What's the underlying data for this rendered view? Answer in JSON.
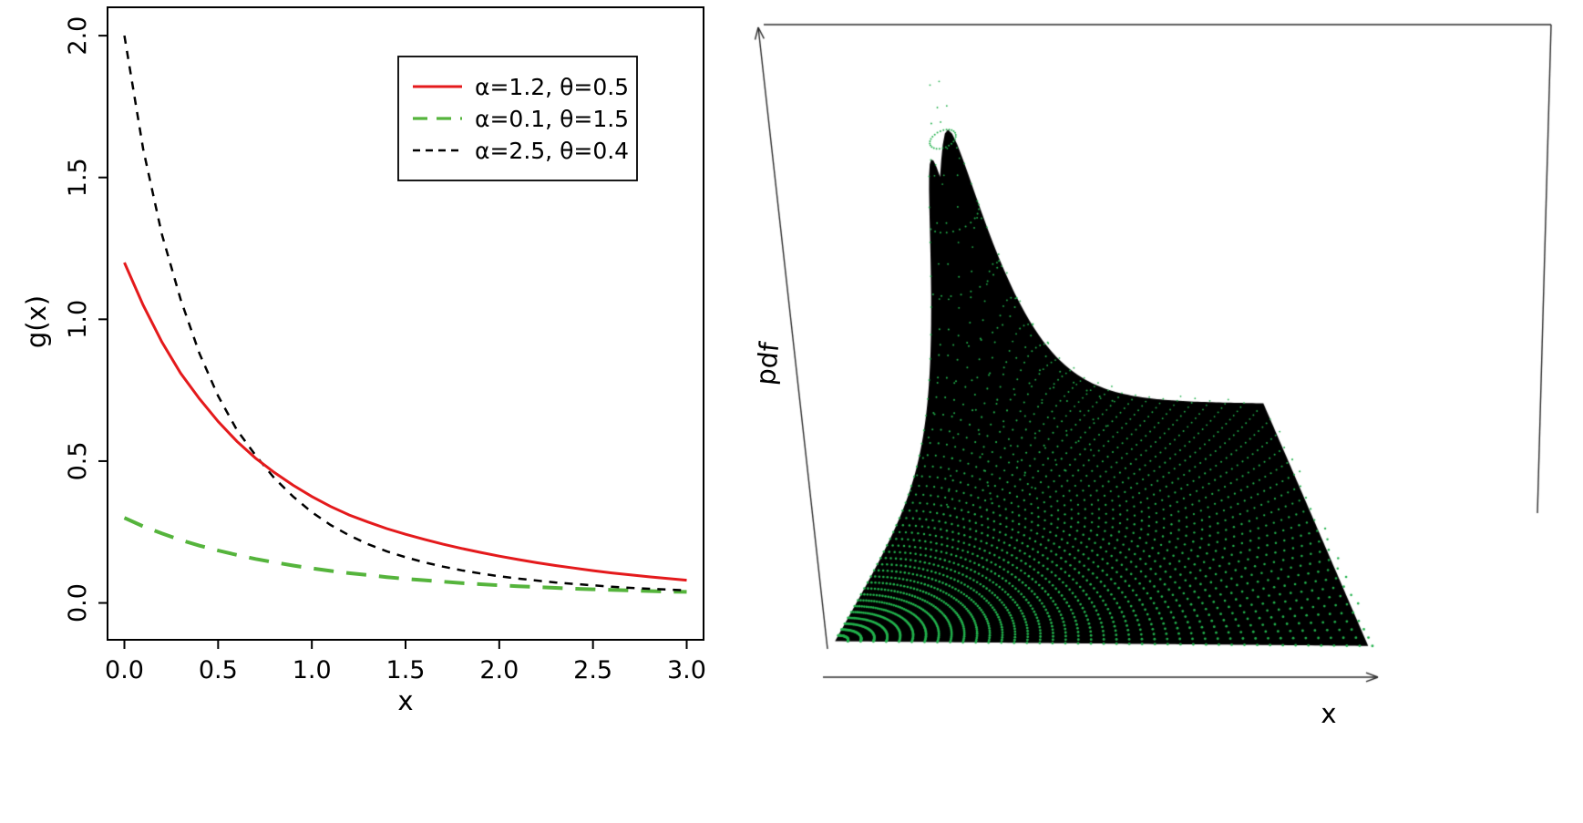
{
  "page": {
    "background": "#ffffff"
  },
  "chart_data": [
    {
      "id": "gx-line-plot",
      "type": "line",
      "title": "",
      "xlabel": "x",
      "ylabel": "g(x)",
      "xlim": [
        -0.09,
        3.09
      ],
      "ylim": [
        -0.13,
        2.1
      ],
      "xticks": [
        0.0,
        0.5,
        1.0,
        1.5,
        2.0,
        2.5,
        3.0
      ],
      "yticks": [
        0.0,
        0.5,
        1.0,
        1.5,
        2.0
      ],
      "grid": false,
      "box": true,
      "x": [
        0.0,
        0.1,
        0.2,
        0.3,
        0.4,
        0.5,
        0.6,
        0.7,
        0.8,
        0.9,
        1.0,
        1.1,
        1.2,
        1.3,
        1.4,
        1.5,
        1.6,
        1.7,
        1.8,
        1.9,
        2.0,
        2.1,
        2.2,
        2.3,
        2.4,
        2.5,
        2.6,
        2.7,
        2.8,
        2.9,
        3.0
      ],
      "series": [
        {
          "name": "α=1.2, θ=0.5",
          "color": "#e41a1c",
          "dash": "solid",
          "width": 3,
          "values": [
            1.2,
            1.05,
            0.92,
            0.81,
            0.72,
            0.64,
            0.57,
            0.51,
            0.46,
            0.415,
            0.375,
            0.34,
            0.31,
            0.285,
            0.262,
            0.242,
            0.224,
            0.207,
            0.192,
            0.178,
            0.165,
            0.153,
            0.142,
            0.132,
            0.123,
            0.114,
            0.106,
            0.099,
            0.092,
            0.086,
            0.08
          ]
        },
        {
          "name": "α=0.1, θ=1.5",
          "color": "#55b43c",
          "dash": "longdash",
          "width": 4,
          "values": [
            0.3,
            0.27,
            0.245,
            0.222,
            0.202,
            0.185,
            0.169,
            0.155,
            0.143,
            0.132,
            0.122,
            0.113,
            0.105,
            0.098,
            0.091,
            0.085,
            0.08,
            0.075,
            0.07,
            0.066,
            0.062,
            0.059,
            0.056,
            0.053,
            0.05,
            0.048,
            0.046,
            0.044,
            0.042,
            0.04,
            0.039
          ]
        },
        {
          "name": "α=2.5, θ=0.4",
          "color": "#000000",
          "dash": "shortdash",
          "width": 2.5,
          "values": [
            2.0,
            1.6,
            1.3,
            1.07,
            0.88,
            0.73,
            0.61,
            0.52,
            0.44,
            0.375,
            0.32,
            0.275,
            0.238,
            0.207,
            0.182,
            0.161,
            0.143,
            0.128,
            0.115,
            0.104,
            0.094,
            0.086,
            0.079,
            0.072,
            0.067,
            0.062,
            0.057,
            0.053,
            0.05,
            0.047,
            0.044
          ]
        }
      ],
      "legend": {
        "position": "top-right-inner",
        "border": true,
        "entries_from_series": true
      }
    },
    {
      "id": "pdf-surface-plot",
      "type": "surface_3d_scatter",
      "xlabel": "x",
      "zlabel": "pdf",
      "surface_color": "#000000",
      "dot_color": "#22b14c",
      "line_color": "#2a2a2a",
      "projection": {
        "floor_p00": [
          918,
          716
        ],
        "floor_p10": [
          1503,
          721
        ],
        "floor_p01": [
          1068,
          452
        ],
        "floor_p11": [
          1388,
          455
        ],
        "z_offset": [
          -58,
          -410
        ]
      },
      "surface": {
        "peak_u": 0.05,
        "peak_v": 0.96,
        "amplitude": 1.0,
        "decay": 8,
        "plateau": 0.03,
        "grid_n": 80
      },
      "dots": {
        "angles": 46,
        "radial_step": 0.024,
        "radial_count": 57,
        "ring_count": 11,
        "ring_step": 0.04,
        "ring_angles": 26
      },
      "axes_lines": {
        "top_edge": [
          838,
          27,
          1702,
          27
        ],
        "right_edge": [
          1702,
          27,
          1687,
          563
        ],
        "z_axis": [
          908,
          712,
          832,
          30
        ],
        "x_axis": [
          903,
          743,
          1512,
          743
        ]
      }
    }
  ]
}
